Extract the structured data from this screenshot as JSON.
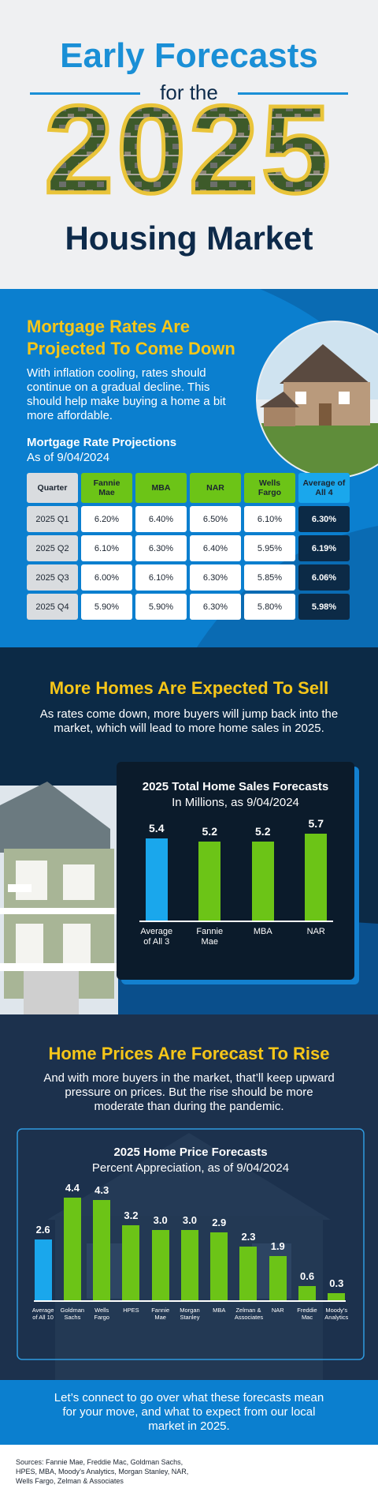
{
  "header": {
    "title_line1": "Early Forecasts",
    "title_line2": "for the",
    "year": "2025",
    "title_line3": "Housing Market"
  },
  "mortgage_section": {
    "title": "Mortgage Rates Are Projected To Come Down",
    "body": "With inflation cooling, rates should continue on a gradual decline. This should help make buying a home a bit more affordable."
  },
  "table": {
    "title": "Mortgage Rate Projections",
    "subtitle": "As of 9/04/2024",
    "columns": [
      "Quarter",
      "Fannie Mae",
      "MBA",
      "NAR",
      "Wells Fargo",
      "Average of All 4"
    ],
    "rows": [
      [
        "2025 Q1",
        "6.20%",
        "6.40%",
        "6.50%",
        "6.10%",
        "6.30%"
      ],
      [
        "2025 Q2",
        "6.10%",
        "6.30%",
        "6.40%",
        "5.95%",
        "6.19%"
      ],
      [
        "2025 Q3",
        "6.00%",
        "6.10%",
        "6.30%",
        "5.85%",
        "6.06%"
      ],
      [
        "2025 Q4",
        "5.90%",
        "5.90%",
        "6.30%",
        "5.80%",
        "5.98%"
      ]
    ]
  },
  "sales_section": {
    "title": "More Homes Are Expected To Sell",
    "body": "As rates come down, more buyers will jump back into the market, which will lead to more home sales in 2025."
  },
  "prices_section": {
    "title": "Home Prices Are Forecast To Rise",
    "body": "And with more buyers in the market, that’ll keep upward pressure on prices. But the rise should be more moderate than during the pandemic."
  },
  "chart_data": [
    {
      "type": "bar",
      "title": "2025 Total Home Sales Forecasts",
      "subtitle": "In Millions, as 9/04/2024",
      "categories": [
        "Average of All 3",
        "Fannie Mae",
        "MBA",
        "NAR"
      ],
      "values": [
        5.4,
        5.2,
        5.2,
        5.7
      ],
      "colors": [
        "#1aa7ec",
        "#6cc417",
        "#6cc417",
        "#6cc417"
      ]
    },
    {
      "type": "bar",
      "title": "2025 Home Price Forecasts",
      "subtitle": "Percent Appreciation, as of 9/04/2024",
      "categories": [
        "Average of All 10",
        "Goldman Sachs",
        "Wells Fargo",
        "HPES",
        "Fannie Mae",
        "Morgan Stanley",
        "MBA",
        "Zelman & Associates",
        "NAR",
        "Freddie Mac",
        "Moody’s Analytics"
      ],
      "values": [
        2.6,
        4.4,
        4.3,
        3.2,
        3,
        3,
        2.9,
        2.3,
        1.9,
        0.6,
        0.3
      ],
      "value_labels": [
        "2.6",
        "4.4",
        "4.3",
        "3.2",
        "3.0",
        "3.0",
        "2.9",
        "2.3",
        "1.9",
        "0.6",
        "0.3"
      ],
      "colors": [
        "#1aa7ec",
        "#6cc417",
        "#6cc417",
        "#6cc417",
        "#6cc417",
        "#6cc417",
        "#6cc417",
        "#6cc417",
        "#6cc417",
        "#6cc417",
        "#6cc417"
      ]
    }
  ],
  "cta": {
    "text": "Let’s connect to go over what these forecasts mean for your move, and what to expect from our local market in 2025."
  },
  "sources": {
    "text": "Sources: Fannie Mae, Freddie Mac, Goldman Sachs, HPES, MBA, Moody’s Analytics, Morgan Stanley, NAR, Wells Fargo, Zelman & Associates"
  }
}
